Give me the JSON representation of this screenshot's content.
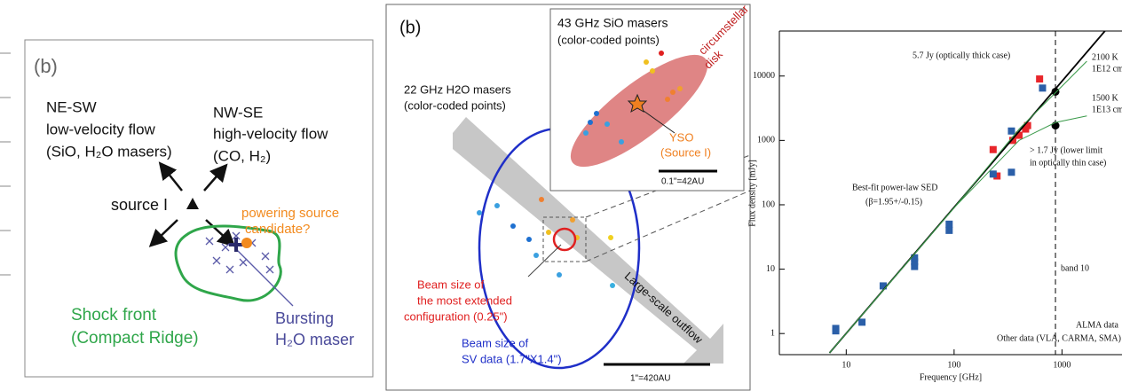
{
  "panel_left": {
    "label": "(b)",
    "ne_sw": [
      "NE-SW",
      "low-velocity flow",
      "(SiO, H₂O masers)"
    ],
    "nw_se": [
      "NW-SE",
      "high-velocity flow",
      "(CO, H₂)"
    ],
    "source": "source I",
    "candidate": [
      "powering source",
      "candidate?"
    ],
    "shock": [
      "Shock front",
      "(Compact Ridge)"
    ],
    "bursting": [
      "Bursting",
      "H₂O maser"
    ]
  },
  "panel_middle": {
    "label": "(b)",
    "inset_title": [
      "43 GHz SiO masers",
      "(color-coded points)"
    ],
    "disk": [
      "circumstellar",
      "disk"
    ],
    "yso": [
      "YSO",
      "(Source I)"
    ],
    "inset_scale": "0.1\"=42AU",
    "h2o_title": [
      "22 GHz H2O masers",
      "(color-coded points)"
    ],
    "beam_red": [
      "Beam size of",
      "the most extended",
      "configuration (0.25\")"
    ],
    "beam_blue": [
      "Beam size of",
      "SV data (1.7\"X1.4\")"
    ],
    "outflow": "Large-scale outflow",
    "scale": "1\"=420AU"
  },
  "chart_data": {
    "type": "scatter",
    "xlabel": "Frequency [GHz]",
    "ylabel": "Flux density [mJy]",
    "log_x": true,
    "log_y": true,
    "xlim": [
      2.4,
      3600
    ],
    "ylim": [
      0.47,
      50000
    ],
    "xticks": [
      10,
      100,
      1000
    ],
    "yticks": [
      1,
      10,
      100,
      1000,
      10000
    ],
    "vline": 870,
    "vline_label": "band 10",
    "annotations": [
      "5.7 Jy (optically thick case)",
      "> 1.7 Jy (lower limit",
      "in optically thin case)",
      "(β=1.95+/-0.15)",
      "2100 K",
      "1E12 cm",
      "1500 K",
      "1E13 cm"
    ],
    "series": [
      {
        "name": "ALMA data",
        "color": "#e8262b",
        "mode": "markers",
        "x": [
          230,
          250,
          350,
          400,
          460,
          480,
          620
        ],
        "values": [
          720,
          280,
          1000,
          1200,
          1500,
          1700,
          9000
        ]
      },
      {
        "name": "Other data (VLA, CARMA, SMA)",
        "color": "#2b5fa8",
        "mode": "markers",
        "x": [
          8,
          8,
          14,
          22,
          43,
          43,
          43,
          90,
          90,
          230,
          340,
          340,
          660
        ],
        "values": [
          1.1,
          1.2,
          1.5,
          5.5,
          11,
          13,
          15,
          40,
          50,
          300,
          1400,
          320,
          6500
        ]
      },
      {
        "color": "#000000",
        "mode": "dots",
        "x": [
          870,
          870
        ],
        "values": [
          5700,
          1700
        ]
      },
      {
        "name": "Best-fit power-law SED",
        "color": "#000000",
        "mode": "line",
        "x": [
          7,
          2500
        ],
        "values": [
          0.5,
          50000
        ]
      },
      {
        "color": "#3a9a4a",
        "mode": "line",
        "x": [
          7,
          100,
          400,
          870,
          1700
        ],
        "values": [
          0.5,
          90,
          1500,
          5500,
          17000
        ]
      },
      {
        "color": "#3a9a4a",
        "mode": "line",
        "x": [
          7,
          100,
          400,
          870,
          1700
        ],
        "values": [
          0.5,
          90,
          1000,
          1900,
          2400
        ]
      }
    ]
  }
}
